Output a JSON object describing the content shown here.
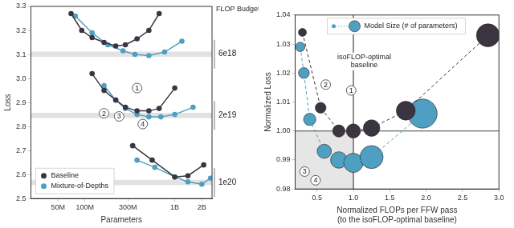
{
  "chart_data": [
    {
      "type": "line",
      "x_label": "Parameters",
      "y_label": "Loss",
      "log": "x",
      "grid": false,
      "legend": "lower left",
      "xlim": [
        25000000,
        2600000000
      ],
      "xticks": [
        {
          "value": 50000000,
          "label": "50M"
        },
        {
          "value": 100000000,
          "label": "100M"
        },
        {
          "value": 300000000,
          "label": "300M"
        },
        {
          "value": 1000000000,
          "label": "1B"
        },
        {
          "value": 2000000000,
          "label": "2B"
        }
      ],
      "ylim": [
        2.5,
        3.3
      ],
      "yticks": [
        2.5,
        2.6,
        2.7,
        2.8,
        2.9,
        {
          "value": 3,
          "label": "3.0"
        },
        3.1,
        3.2,
        3.3
      ],
      "budget_title": "FLOP Budget",
      "bands": [
        {
          "budget": "6e18",
          "from": 3.09,
          "to": 3.112
        },
        {
          "budget": "2e19",
          "from": 2.835,
          "to": 2.857
        },
        {
          "budget": "1e20",
          "from": 2.556,
          "to": 2.578
        }
      ],
      "series": [
        {
          "name": "Baseline",
          "budget": "6e18",
          "color": "#3a3540",
          "marker": "circle",
          "line_style": "solid",
          "x": [
            70000000,
            92000000,
            120000000,
            163000000,
            220000000,
            282000000,
            380000000,
            515000000,
            670000000
          ],
          "values": [
            3.27,
            3.2,
            3.17,
            3.15,
            3.135,
            3.14,
            3.165,
            3.2,
            3.27
          ]
        },
        {
          "name": "Mixture-of-Depths",
          "budget": "6e18",
          "color": "#4f9fc2",
          "marker": "circle",
          "line_style": "solid",
          "x": [
            78000000,
            120000000,
            180000000,
            265000000,
            360000000,
            515000000,
            770000000,
            1200000000
          ],
          "values": [
            3.26,
            3.19,
            3.14,
            3.115,
            3.1,
            3.095,
            3.11,
            3.155
          ]
        },
        {
          "name": "Baseline",
          "budget": "2e19",
          "color": "#3a3540",
          "marker": "circle",
          "line_style": "solid",
          "x": [
            120000000,
            163000000,
            220000000,
            282000000,
            380000000,
            515000000,
            670000000,
            1000000000
          ],
          "values": [
            3.02,
            2.95,
            2.91,
            2.88,
            2.865,
            2.865,
            2.875,
            2.96
          ]
        },
        {
          "name": "Mixture-of-Depths",
          "budget": "2e19",
          "color": "#4f9fc2",
          "marker": "circle",
          "line_style": "solid",
          "x": [
            163000000,
            220000000,
            282000000,
            380000000,
            515000000,
            700000000,
            1000000000,
            1600000000
          ],
          "values": [
            2.97,
            2.91,
            2.875,
            2.85,
            2.84,
            2.84,
            2.85,
            2.88
          ]
        },
        {
          "name": "Baseline",
          "budget": "1e20",
          "color": "#3a3540",
          "marker": "circle",
          "line_style": "solid",
          "x": [
            340000000,
            560000000,
            1000000000,
            1400000000,
            2100000000
          ],
          "values": [
            2.72,
            2.66,
            2.59,
            2.595,
            2.64
          ]
        },
        {
          "name": "Mixture-of-Depths",
          "budget": "1e20",
          "color": "#4f9fc2",
          "marker": "circle",
          "line_style": "solid",
          "x": [
            380000000,
            600000000,
            1000000000,
            1400000000,
            2000000000,
            2500000000
          ],
          "values": [
            2.66,
            2.63,
            2.59,
            2.57,
            2.56,
            2.585
          ]
        }
      ],
      "annotations": [
        {
          "text": "1",
          "x": 380000000,
          "y": 2.96,
          "marker": "circle"
        },
        {
          "text": "2",
          "x": 163000000,
          "y": 2.855,
          "marker": "circle"
        },
        {
          "text": "3",
          "x": 240000000,
          "y": 2.842,
          "marker": "circle"
        },
        {
          "text": "4",
          "x": 440000000,
          "y": 2.81,
          "marker": "circle"
        }
      ]
    },
    {
      "type": "bubble",
      "x_label": [
        "Normalized FLOPs per FFW pass",
        "(to the isoFLOP-optimal baseline)"
      ],
      "y_label": "Normalized Loss",
      "grid": false,
      "legend": "upper left",
      "legend_label": "Model Size (# of parameters)",
      "line_style": "dashed",
      "xlim": [
        0.2,
        3.0
      ],
      "xticks": [
        0.5,
        {
          "value": 1,
          "label": "1.0"
        },
        1.5,
        {
          "value": 2,
          "label": "2.0"
        },
        2.5,
        {
          "value": 3,
          "label": "3.0"
        }
      ],
      "ylim": [
        0.98,
        1.04
      ],
      "yticks": [
        0.98,
        0.99,
        {
          "value": 1,
          "label": "1.00"
        },
        1.01,
        1.02,
        1.03,
        1.04
      ],
      "reference_lines": {
        "x": 1,
        "y": 1
      },
      "series": [
        {
          "color": "#3a3540",
          "x": [
            0.3,
            0.55,
            0.8,
            1.0,
            1.25,
            1.72,
            2.85
          ],
          "values": [
            1.034,
            1.008,
            1.0,
            1.0,
            1.001,
            1.007,
            1.033
          ],
          "sizes": [
            120000000,
            220000000,
            282000000,
            380000000,
            515000000,
            670000000,
            1000000000
          ]
        },
        {
          "color": "#4f9fc2",
          "x": [
            0.27,
            0.32,
            0.4,
            0.6,
            0.8,
            1.0,
            1.25,
            1.95
          ],
          "values": [
            1.029,
            1.02,
            1.004,
            0.993,
            0.99,
            0.989,
            0.991,
            1.006
          ],
          "sizes": [
            163000000,
            220000000,
            282000000,
            380000000,
            515000000,
            700000000,
            1000000000,
            1600000000
          ]
        }
      ],
      "annotations": [
        {
          "text": [
            "isoFLOP-optimal",
            "baseline"
          ],
          "x": 1.15,
          "y": 1.024
        },
        {
          "text": "1",
          "x": 0.97,
          "y": 1.014,
          "marker": "circle"
        },
        {
          "text": "2",
          "x": 0.62,
          "y": 1.016,
          "marker": "circle"
        },
        {
          "text": "3",
          "x": 0.33,
          "y": 0.986,
          "marker": "circle"
        },
        {
          "text": "4",
          "x": 0.48,
          "y": 0.983,
          "marker": "circle"
        }
      ]
    }
  ]
}
